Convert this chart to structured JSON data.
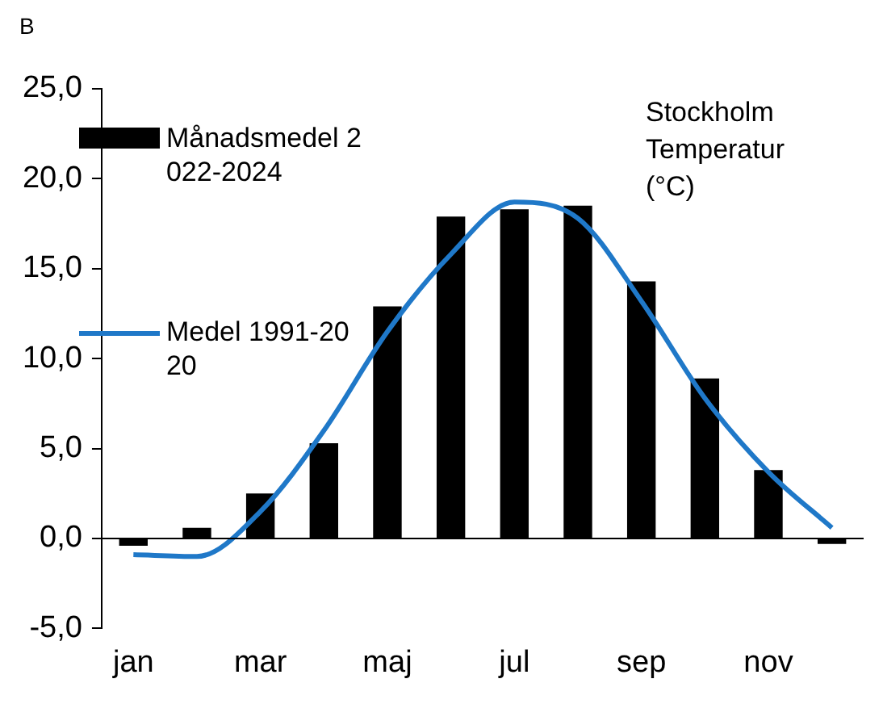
{
  "chart_data": {
    "type": "bar",
    "title": "Stockholm Temperatur (°C)",
    "annotations": [
      "B"
    ],
    "categories": [
      "jan",
      null,
      "mar",
      null,
      "maj",
      null,
      "jul",
      null,
      "sep",
      null,
      "nov",
      null
    ],
    "series": [
      {
        "name": "Månadsmedel 2022-2024",
        "color": "#000000",
        "values": [
          -0.4,
          0.6,
          2.5,
          5.3,
          12.9,
          17.9,
          18.3,
          18.5,
          14.3,
          8.9,
          3.8,
          -0.3
        ]
      },
      {
        "name": "Medel 1991-2020",
        "type": "line",
        "color": "#1f78c8",
        "values": [
          -0.9,
          -1.0,
          1.5,
          6.0,
          11.5,
          15.8,
          18.7,
          17.8,
          13.2,
          7.8,
          3.7,
          0.6
        ]
      }
    ],
    "ylim": [
      -5,
      25
    ],
    "yticks": [
      {
        "value": -5,
        "label": "-5,0"
      },
      {
        "value": 0,
        "label": "0,0"
      },
      {
        "value": 5,
        "label": "5,0"
      },
      {
        "value": 10,
        "label": "10,0"
      },
      {
        "value": 15,
        "label": "15,0"
      },
      {
        "value": 20,
        "label": "20,0"
      },
      {
        "value": 25,
        "label": "25,0"
      }
    ],
    "ref_lines": [
      {
        "axis": "y",
        "value": 0,
        "color": "#000000"
      }
    ],
    "grid": false,
    "legend": "top left",
    "marker": "none",
    "line_style": "solid"
  }
}
